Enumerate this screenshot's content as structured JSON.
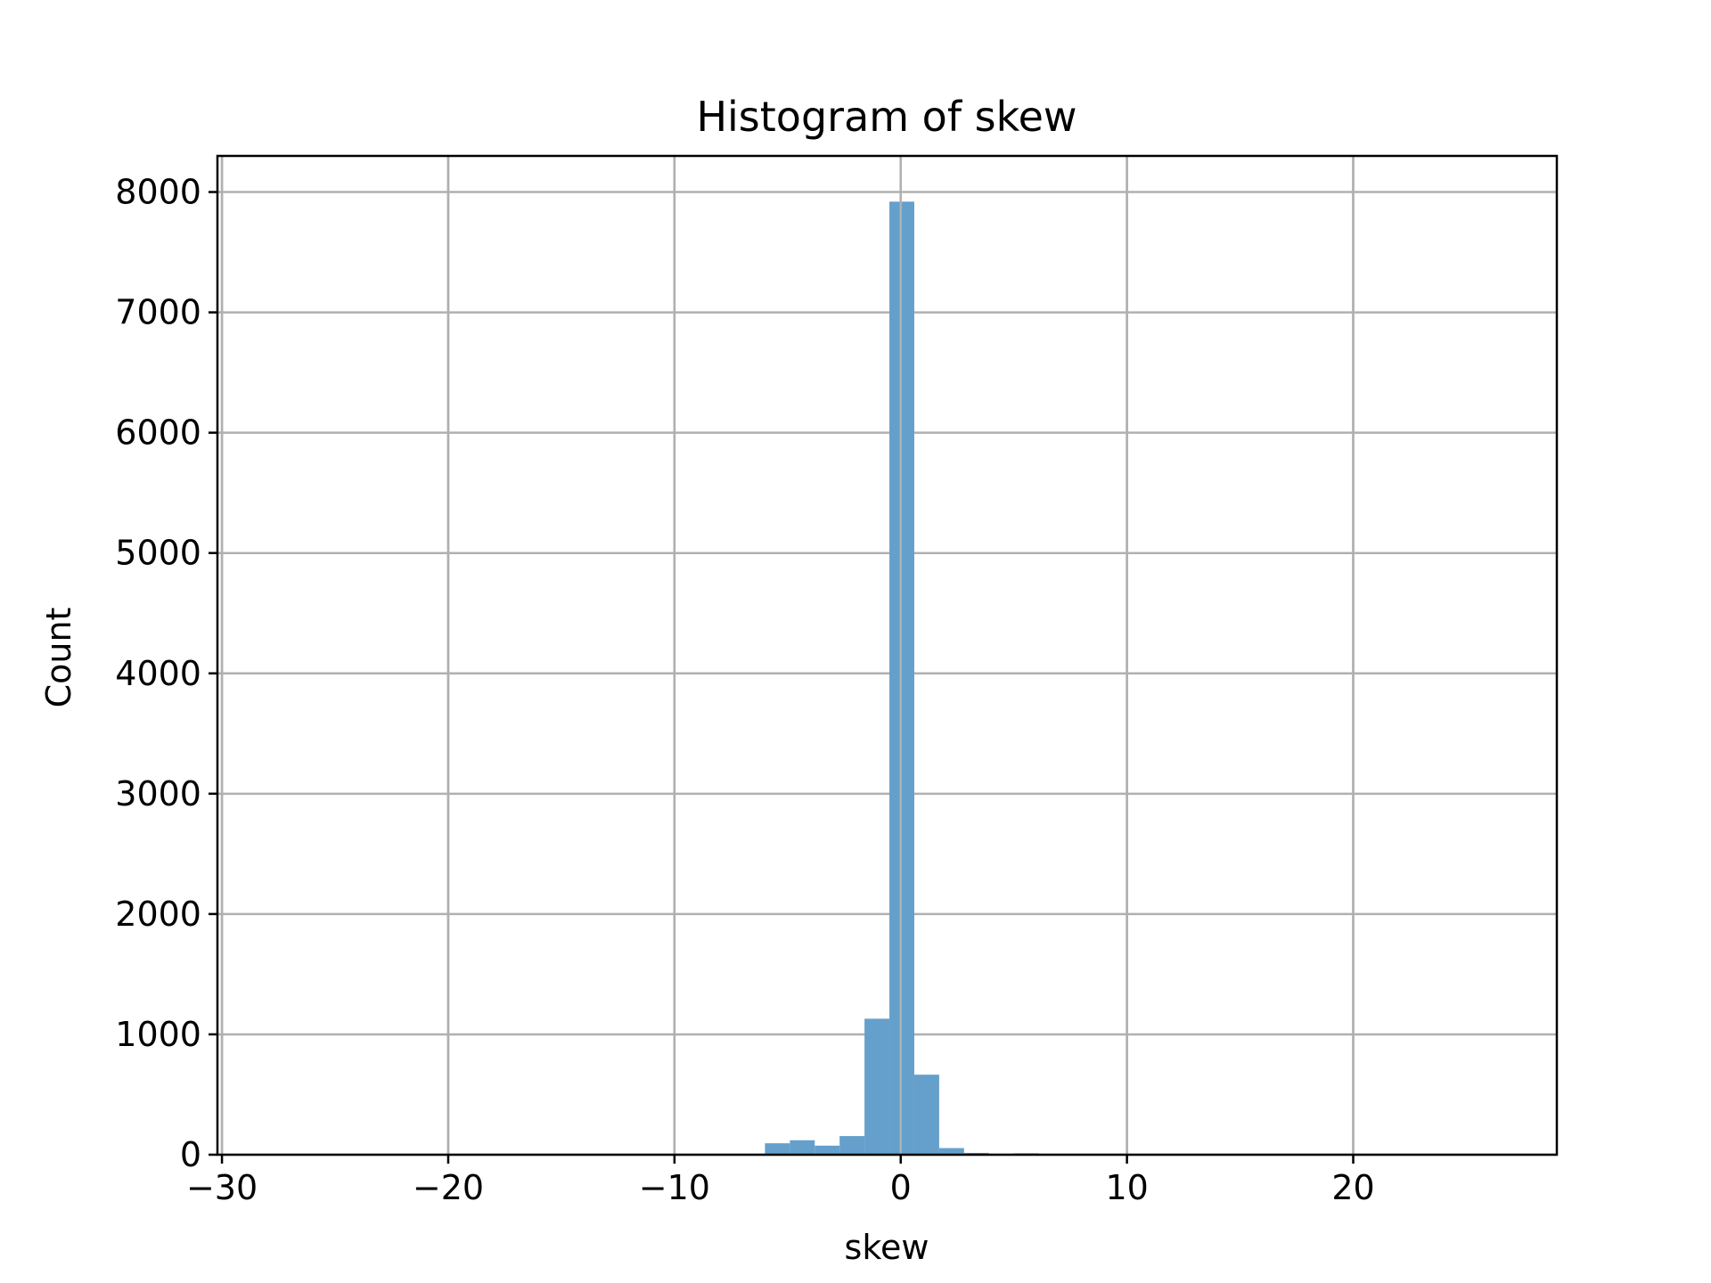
{
  "chart_data": {
    "type": "bar",
    "title": "Histogram of skew",
    "xlabel": "skew",
    "ylabel": "Count",
    "xlim": [
      -30.2,
      29
    ],
    "ylim": [
      0,
      8300
    ],
    "xticks": [
      -30,
      -20,
      -10,
      0,
      10,
      20
    ],
    "xtick_labels": [
      "−30",
      "−20",
      "−10",
      "0",
      "10",
      "20"
    ],
    "yticks": [
      0,
      1000,
      2000,
      3000,
      4000,
      5000,
      6000,
      7000,
      8000
    ],
    "ytick_labels": [
      "0",
      "1000",
      "2000",
      "3000",
      "4000",
      "5000",
      "6000",
      "7000",
      "8000"
    ],
    "grid": true,
    "bar_color": "#64a0cb",
    "bins": [
      {
        "x0": -7.1,
        "x1": -6.0,
        "count": 3
      },
      {
        "x0": -6.0,
        "x1": -4.9,
        "count": 95
      },
      {
        "x0": -4.9,
        "x1": -3.8,
        "count": 120
      },
      {
        "x0": -3.8,
        "x1": -2.7,
        "count": 75
      },
      {
        "x0": -2.7,
        "x1": -1.6,
        "count": 155
      },
      {
        "x0": -1.6,
        "x1": -0.5,
        "count": 1130
      },
      {
        "x0": -0.5,
        "x1": 0.6,
        "count": 7920
      },
      {
        "x0": 0.6,
        "x1": 1.7,
        "count": 665
      },
      {
        "x0": 1.7,
        "x1": 2.8,
        "count": 55
      },
      {
        "x0": 2.8,
        "x1": 3.9,
        "count": 15
      },
      {
        "x0": 3.9,
        "x1": 5.0,
        "count": 8
      },
      {
        "x0": 5.0,
        "x1": 6.1,
        "count": 12
      },
      {
        "x0": 6.1,
        "x1": 7.2,
        "count": 5
      }
    ]
  }
}
